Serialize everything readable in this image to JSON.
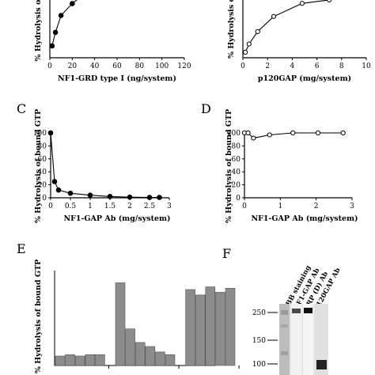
{
  "chart_data": [
    {
      "type": "line",
      "panel_label": "",
      "xlabel": "NF1-GRD type I (ng/system)",
      "ylabel": "% Hydrolysis of bou",
      "xticks": [
        "0",
        "20",
        "40",
        "60",
        "80",
        "100",
        "120"
      ],
      "xlim": [
        0,
        120
      ],
      "ylim": [
        0,
        100
      ],
      "marker": "filled",
      "series": [
        {
          "x": [
            2,
            5,
            10,
            20,
            35
          ],
          "y": [
            14,
            30,
            50,
            64,
            80
          ]
        }
      ]
    },
    {
      "type": "line",
      "panel_label": "",
      "xlabel": "p120GAP (mg/system)",
      "ylabel": "% Hydrolysis of bo",
      "xticks": [
        "0",
        "2",
        "4",
        "6",
        "8",
        "10"
      ],
      "xlim": [
        0,
        10
      ],
      "ylim": [
        0,
        100
      ],
      "marker": "open",
      "series": [
        {
          "x": [
            0.2,
            0.5,
            1.2,
            2.5,
            4.8,
            7
          ],
          "y": [
            8,
            20,
            38,
            60,
            79,
            84
          ]
        }
      ]
    },
    {
      "type": "line",
      "panel_label": "C",
      "xlabel": "NF1-GAP Ab (mg/system)",
      "ylabel": "% Hydrolysis of bound GTP",
      "xticks": [
        "0",
        "0.5",
        "1",
        "1.5",
        "2",
        "2.5",
        "3"
      ],
      "yticks": [
        "0",
        "20",
        "40",
        "60",
        "80",
        "100"
      ],
      "xlim": [
        0,
        3
      ],
      "ylim": [
        0,
        100
      ],
      "marker": "filled",
      "series": [
        {
          "x": [
            0,
            0.1,
            0.2,
            0.5,
            1.0,
            1.5,
            2.0,
            2.5,
            2.75
          ],
          "y": [
            100,
            25,
            12,
            7,
            4,
            2,
            1,
            0.5,
            0.5
          ]
        }
      ]
    },
    {
      "type": "line",
      "panel_label": "D",
      "xlabel": "NF1-GAP Ab (mg/system)",
      "ylabel": "% Hydrolysis of bound GTP",
      "xticks": [
        "0",
        "1",
        "2",
        "3"
      ],
      "yticks": [
        "0",
        "20",
        "40",
        "60",
        "80",
        "100"
      ],
      "xlim": [
        0,
        3
      ],
      "ylim": [
        0,
        100
      ],
      "marker": "open",
      "series": [
        {
          "x": [
            0,
            0.1,
            0.25,
            0.7,
            1.35,
            2.05,
            2.75
          ],
          "y": [
            100,
            100,
            92,
            97,
            100,
            100,
            100
          ]
        }
      ]
    },
    {
      "type": "bar",
      "panel_label": "E",
      "ylabel": "% Hydrolysis of bound GTP",
      "ylim": [
        0,
        70
      ],
      "groups": [
        [
          7,
          8,
          7,
          8,
          8
        ],
        [
          61,
          27,
          17,
          14,
          10,
          8
        ],
        [
          56,
          52,
          58,
          54,
          57
        ]
      ]
    }
  ],
  "panel_F": {
    "label": "F",
    "lanes": [
      "CBB staining",
      "NF1-GAP Ab",
      "CRP (D) Ab",
      "p120GAP Ab"
    ],
    "markers": [
      "250",
      "150",
      "100"
    ]
  }
}
